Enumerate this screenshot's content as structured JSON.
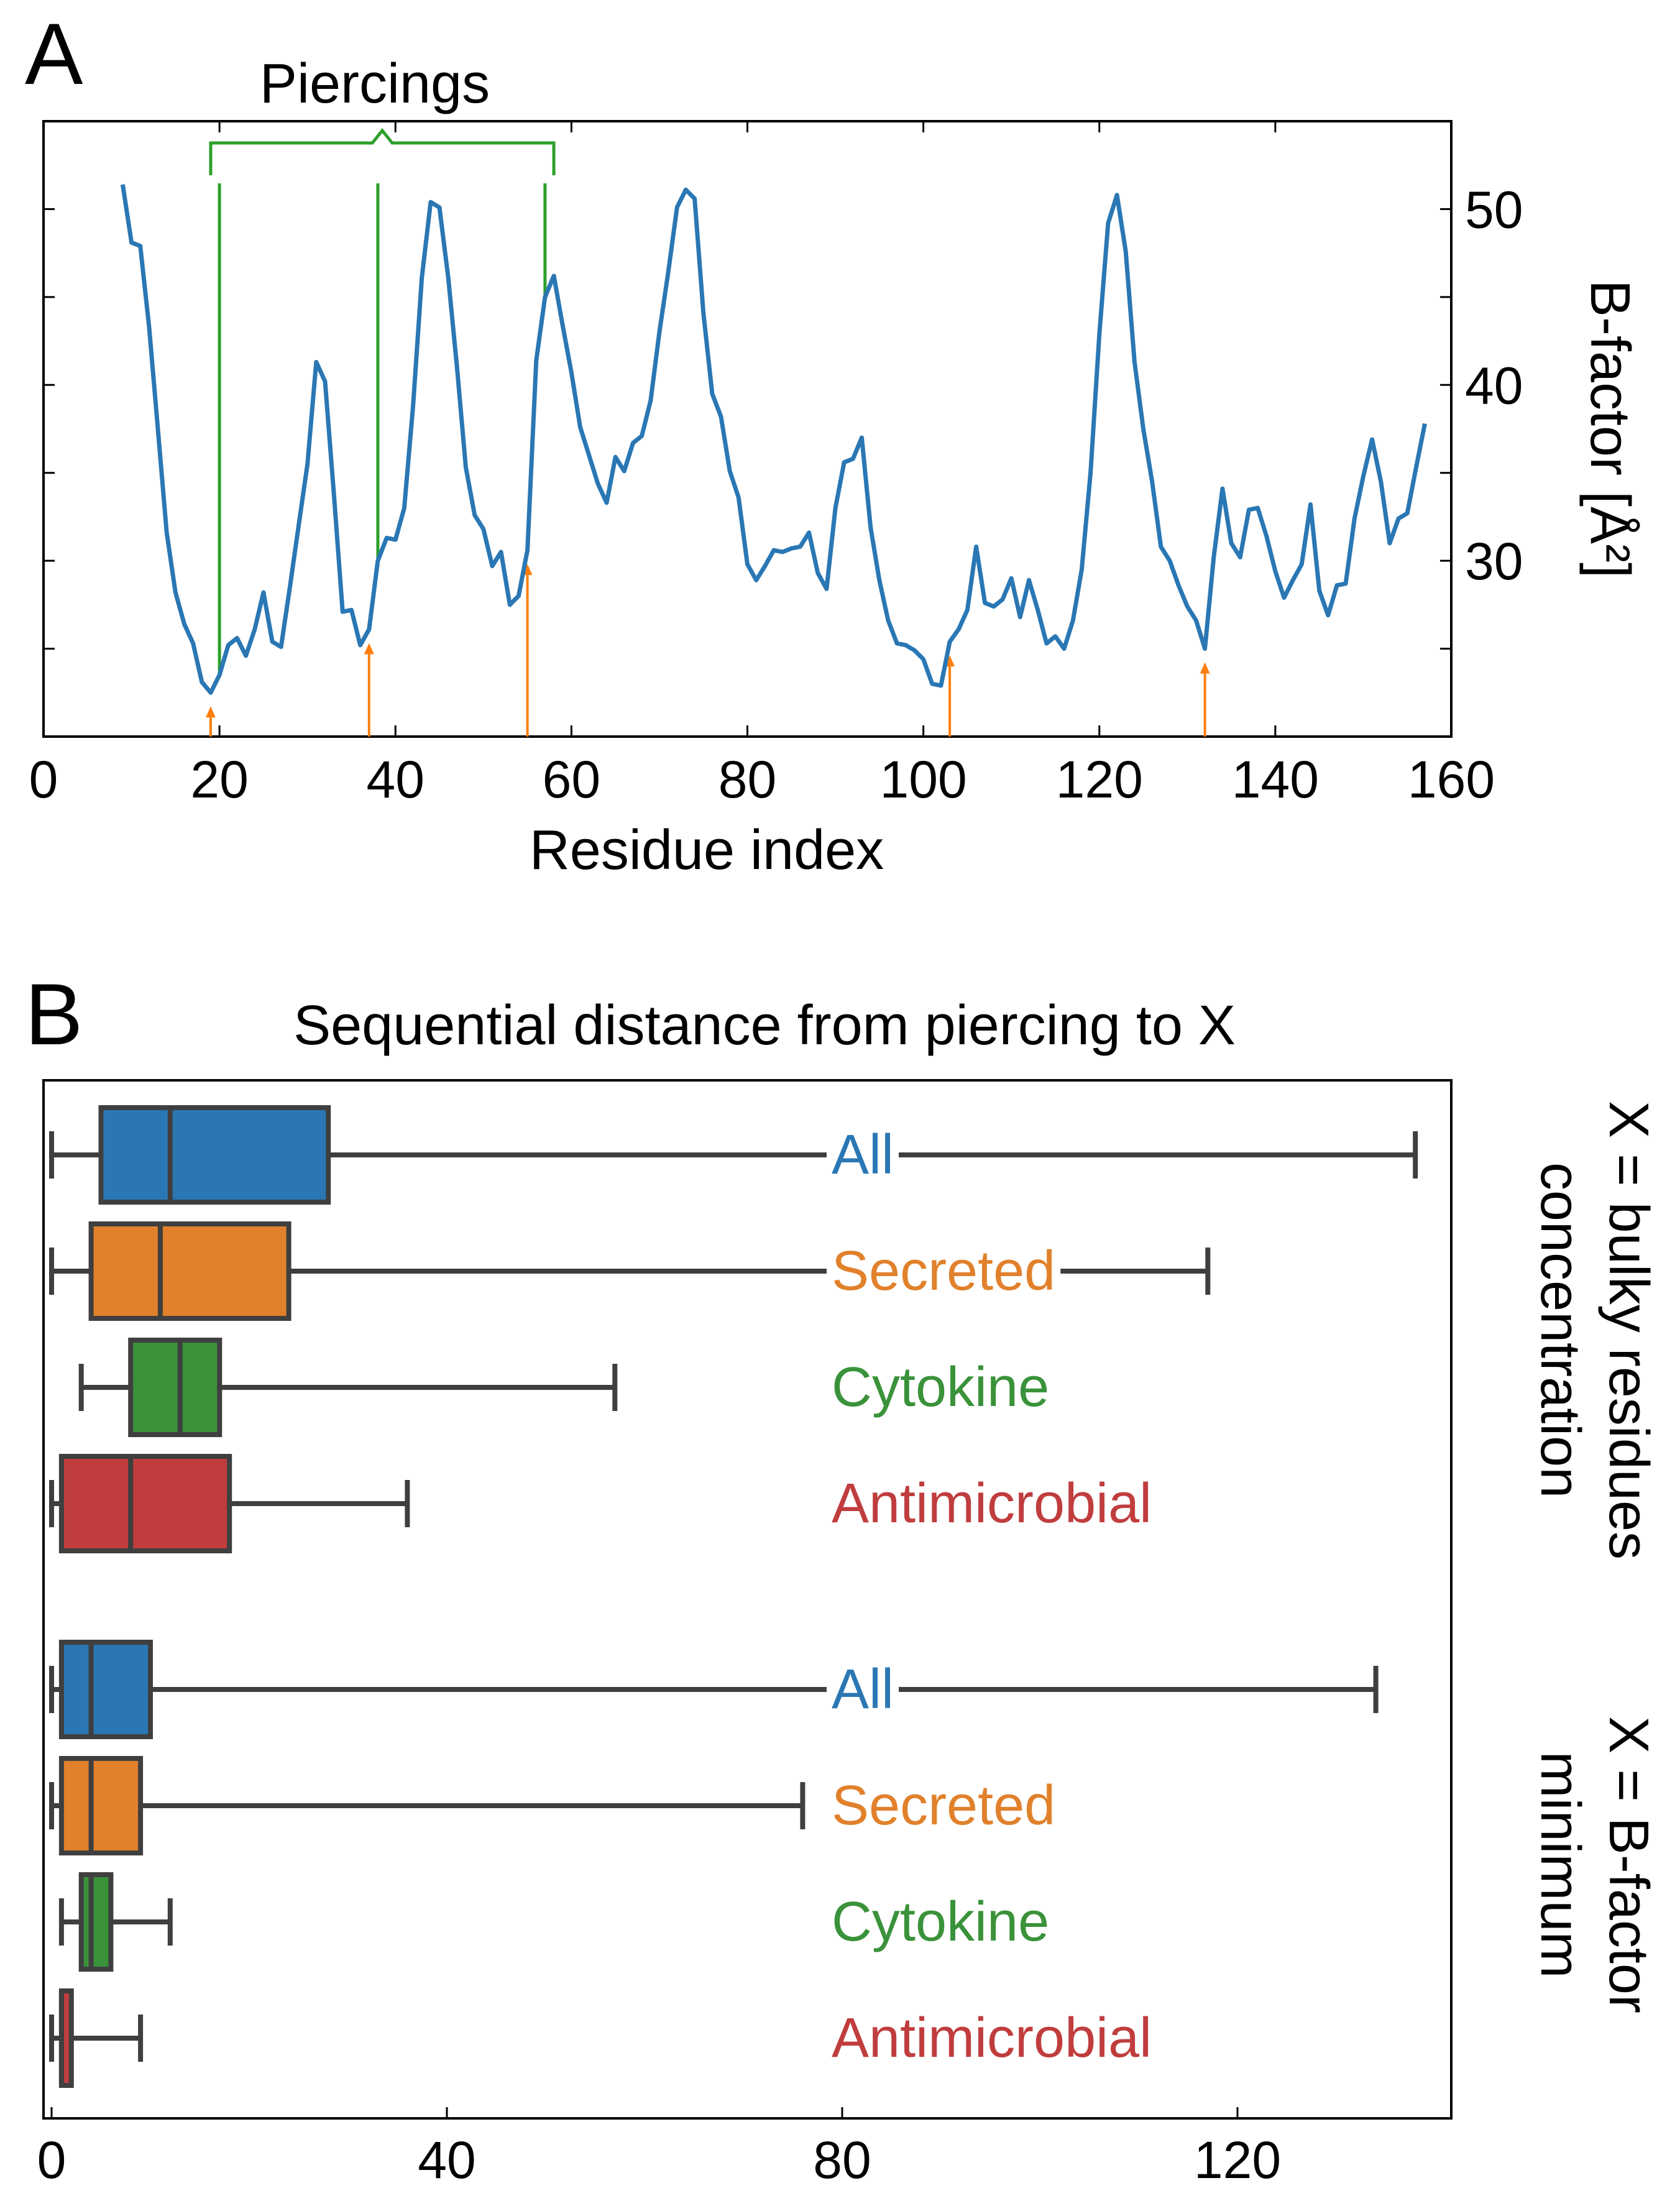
{
  "panel_a_label": "A",
  "panel_b_label": "B",
  "chart_data": [
    {
      "type": "line",
      "panel": "A",
      "title": "",
      "xlabel": "Residue index",
      "ylabel": "B-factor [Å²]",
      "y_axis_side": "right",
      "xlim": [
        0,
        160
      ],
      "ylim": [
        20,
        55
      ],
      "x_ticks": [
        0,
        20,
        40,
        60,
        80,
        100,
        120,
        140,
        160
      ],
      "y_ticks_labeled": [
        30,
        40,
        50
      ],
      "y_ticks_minor": [
        25,
        35,
        45
      ],
      "series": [
        {
          "name": "B-factor",
          "color": "#2a77b4",
          "x": [
            9,
            10,
            11,
            12,
            13,
            14,
            15,
            16,
            17,
            18,
            19,
            20,
            21,
            22,
            23,
            24,
            25,
            26,
            27,
            28,
            29,
            30,
            31,
            32,
            33,
            34,
            35,
            36,
            37,
            38,
            39,
            40,
            41,
            42,
            43,
            44,
            45,
            46,
            47,
            48,
            49,
            50,
            51,
            52,
            53,
            54,
            55,
            56,
            57,
            58,
            59,
            60,
            61,
            62,
            63,
            64,
            65,
            66,
            67,
            68,
            69,
            70,
            71,
            72,
            73,
            74,
            75,
            76,
            77,
            78,
            79,
            80,
            81,
            82,
            83,
            84,
            85,
            86,
            87,
            88,
            89,
            90,
            91,
            92,
            93,
            94,
            95,
            96,
            97,
            98,
            99,
            100,
            101,
            102,
            103,
            104,
            105,
            106,
            107,
            108,
            109,
            110,
            111,
            112,
            113,
            114,
            115,
            116,
            117,
            118,
            119,
            120,
            121,
            122,
            123,
            124,
            125,
            126,
            127,
            128,
            129,
            130,
            131,
            132,
            133,
            134,
            135,
            136,
            137,
            138,
            139,
            140,
            141,
            142,
            143,
            144,
            145,
            146,
            147,
            148,
            149,
            150,
            151,
            152,
            153,
            154,
            155,
            156,
            157
          ],
          "y": [
            51.4,
            48.1,
            47.9,
            43.3,
            37.5,
            31.6,
            28.2,
            26.4,
            25.3,
            23.1,
            22.5,
            23.5,
            25.2,
            25.6,
            24.6,
            26.1,
            28.2,
            25.4,
            25.1,
            28.5,
            32.0,
            35.5,
            41.3,
            40.2,
            33.8,
            27.1,
            27.2,
            25.2,
            26.1,
            30.0,
            31.3,
            31.2,
            33.0,
            38.8,
            46.1,
            50.4,
            50.1,
            46.1,
            41.0,
            35.3,
            32.6,
            31.8,
            29.7,
            30.5,
            27.5,
            28.0,
            30.6,
            41.4,
            45.0,
            46.2,
            43.4,
            40.7,
            37.6,
            36.0,
            34.4,
            33.3,
            35.9,
            35.1,
            36.7,
            37.1,
            39.1,
            43.0,
            46.4,
            50.1,
            51.1,
            50.6,
            44.1,
            39.5,
            38.2,
            35.1,
            33.6,
            29.8,
            28.9,
            29.7,
            30.6,
            30.5,
            30.7,
            30.8,
            31.6,
            29.3,
            28.4,
            33.0,
            35.6,
            35.8,
            37.0,
            31.9,
            28.9,
            26.6,
            25.3,
            25.2,
            24.9,
            24.4,
            23.0,
            22.9,
            25.4,
            26.1,
            27.2,
            30.8,
            27.6,
            27.4,
            27.8,
            29.0,
            26.8,
            28.9,
            27.2,
            25.3,
            25.7,
            25.0,
            26.6,
            29.5,
            35.0,
            42.9,
            49.2,
            50.8,
            47.6,
            41.3,
            37.5,
            34.5,
            30.8,
            30.0,
            28.6,
            27.4,
            26.6,
            25.0,
            30.2,
            34.1,
            31.0,
            30.2,
            32.9,
            33.0,
            31.4,
            29.4,
            27.9,
            28.9,
            29.8,
            33.2,
            28.3,
            26.9,
            28.6,
            28.7,
            32.4,
            34.8,
            36.9,
            34.5,
            31.0,
            32.4,
            32.7,
            35.3,
            37.8
          ]
        }
      ],
      "bracket_label": "Piercings",
      "bracket_color": "#2ca02c",
      "piercing_x": [
        20,
        38,
        57
      ],
      "arrow_color": "#ff7f0e",
      "arrow_x": [
        19,
        37,
        55,
        103,
        132
      ]
    },
    {
      "type": "box",
      "panel": "B",
      "orientation": "horizontal",
      "title": "Sequential distance from piercing to X",
      "xlim": [
        0,
        140
      ],
      "x_ticks": [
        0,
        40,
        80,
        120
      ],
      "groups": [
        {
          "label": "X = bulky residues concentration",
          "label_line1": "X = bulky residues",
          "label_line2": "concentration",
          "boxes": [
            {
              "name": "All",
              "color": "#2a77b4",
              "whisker_low": 0,
              "q1": 5,
              "median": 12,
              "q3": 28,
              "whisker_high": 138
            },
            {
              "name": "Secreted",
              "color": "#e1812c",
              "whisker_low": 0,
              "q1": 4,
              "median": 11,
              "q3": 24,
              "whisker_high": 117
            },
            {
              "name": "Cytokine",
              "color": "#3a923a",
              "whisker_low": 3,
              "q1": 8,
              "median": 13,
              "q3": 17,
              "whisker_high": 57
            },
            {
              "name": "Antimicrobial",
              "color": "#c03d3e",
              "whisker_low": 0,
              "q1": 1,
              "median": 8,
              "q3": 18,
              "whisker_high": 36
            }
          ]
        },
        {
          "label": "X = B-factor minimum",
          "label_line1": "X = B-factor",
          "label_line2": "minimum",
          "boxes": [
            {
              "name": "All",
              "color": "#2a77b4",
              "whisker_low": 0,
              "q1": 1,
              "median": 4,
              "q3": 10,
              "whisker_high": 134
            },
            {
              "name": "Secreted",
              "color": "#e1812c",
              "whisker_low": 0,
              "q1": 1,
              "median": 4,
              "q3": 9,
              "whisker_high": 76
            },
            {
              "name": "Cytokine",
              "color": "#3a923a",
              "whisker_low": 1,
              "q1": 3,
              "median": 4,
              "q3": 6,
              "whisker_high": 12
            },
            {
              "name": "Antimicrobial",
              "color": "#c03d3e",
              "whisker_low": 0,
              "q1": 1,
              "median": 1,
              "q3": 2,
              "whisker_high": 9
            }
          ]
        }
      ]
    }
  ]
}
